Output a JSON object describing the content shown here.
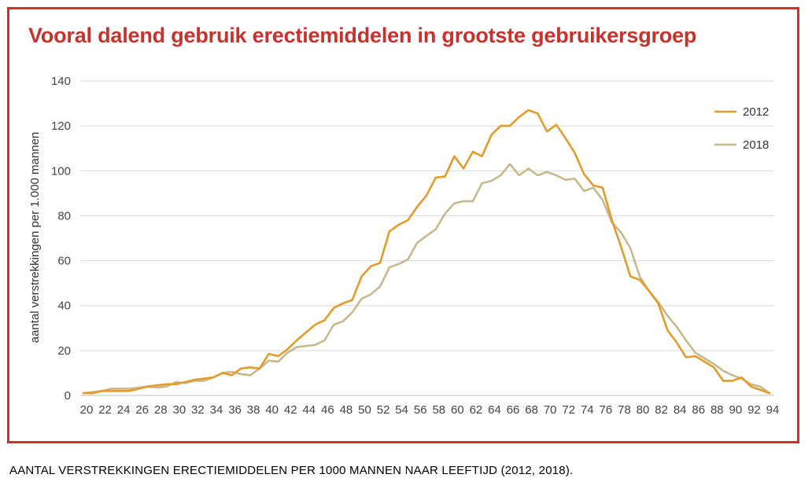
{
  "caption": "AANTAL VERSTREKKINGEN ERECTIEMIDDELEN PER 1000 MANNEN NAAR LEEFTIJD (2012, 2018).",
  "colors": {
    "frame": "#c8322c",
    "title": "#c8322c",
    "grid": "#d9d9d9"
  },
  "chart_data": {
    "type": "line",
    "title": "Vooral dalend gebruik erectiemiddelen in grootste gebruikersgroep",
    "xlabel": "",
    "ylabel": "aantal verstrekkingen per 1.000 mannen",
    "xlim": [
      20,
      94
    ],
    "ylim": [
      0,
      140
    ],
    "grid": true,
    "legend_position": "top-right",
    "x_ticks": [
      "20",
      "22",
      "24",
      "26",
      "28",
      "30",
      "32",
      "34",
      "36",
      "38",
      "40",
      "42",
      "44",
      "46",
      "48",
      "50",
      "52",
      "54",
      "56",
      "58",
      "60",
      "62",
      "64",
      "66",
      "68",
      "70",
      "72",
      "74",
      "76",
      "78",
      "80",
      "82",
      "84",
      "86",
      "88",
      "90",
      "92",
      "94"
    ],
    "y_ticks": [
      "0",
      "20",
      "40",
      "60",
      "80",
      "100",
      "120",
      "140"
    ],
    "x": [
      20,
      21,
      22,
      23,
      24,
      25,
      26,
      27,
      28,
      29,
      30,
      31,
      32,
      33,
      34,
      35,
      36,
      37,
      38,
      39,
      40,
      41,
      42,
      43,
      44,
      45,
      46,
      47,
      48,
      49,
      50,
      51,
      52,
      53,
      54,
      55,
      56,
      57,
      58,
      59,
      60,
      61,
      62,
      63,
      64,
      65,
      66,
      67,
      68,
      69,
      70,
      71,
      72,
      73,
      74,
      75,
      76,
      77,
      78,
      79,
      80,
      81,
      82,
      83,
      84,
      85,
      86,
      87,
      88,
      89,
      90,
      91,
      92,
      93,
      94
    ],
    "series": [
      {
        "name": "2012",
        "color": "#e39b2b",
        "values": [
          1,
          1,
          2,
          2,
          2,
          2,
          3,
          4,
          4.5,
          5,
          5,
          6,
          7,
          7.5,
          8,
          10,
          9,
          12,
          12.5,
          12,
          18.5,
          17.5,
          20.5,
          24.5,
          28,
          31.5,
          33.5,
          39,
          41,
          42.5,
          53,
          57.5,
          59,
          73,
          76,
          78,
          84,
          89,
          97,
          97.5,
          106.5,
          101,
          108.5,
          106.5,
          116,
          120,
          120,
          124,
          127,
          125.5,
          117.5,
          120.5,
          114.5,
          108,
          98.5,
          93.5,
          92.5,
          78,
          66,
          53,
          51.5,
          46.5,
          41,
          29,
          23.5,
          17,
          17.5,
          15,
          12.5,
          6.5,
          6.5,
          8,
          4,
          2.5,
          1
        ]
      },
      {
        "name": "2018",
        "color": "#c8b88e",
        "values": [
          1,
          1.5,
          2,
          3,
          3,
          3,
          3.5,
          4,
          3.5,
          4,
          6,
          5.5,
          6.5,
          6.5,
          8,
          10,
          10.5,
          9.5,
          9,
          12,
          15.5,
          15,
          19,
          21.5,
          22,
          22.5,
          24.5,
          31.5,
          33,
          37,
          43,
          45,
          48.5,
          57,
          58.5,
          60.5,
          68,
          71,
          74,
          81,
          85.5,
          86.5,
          86.5,
          94.5,
          95.5,
          98,
          103,
          98,
          101,
          98,
          99.5,
          98,
          96,
          96.5,
          91,
          92.5,
          87,
          77,
          72.5,
          65.5,
          53,
          46.5,
          41.5,
          35.5,
          30.5,
          24.5,
          19,
          16.5,
          14,
          11,
          9,
          7.5,
          5,
          4,
          1
        ]
      }
    ]
  }
}
